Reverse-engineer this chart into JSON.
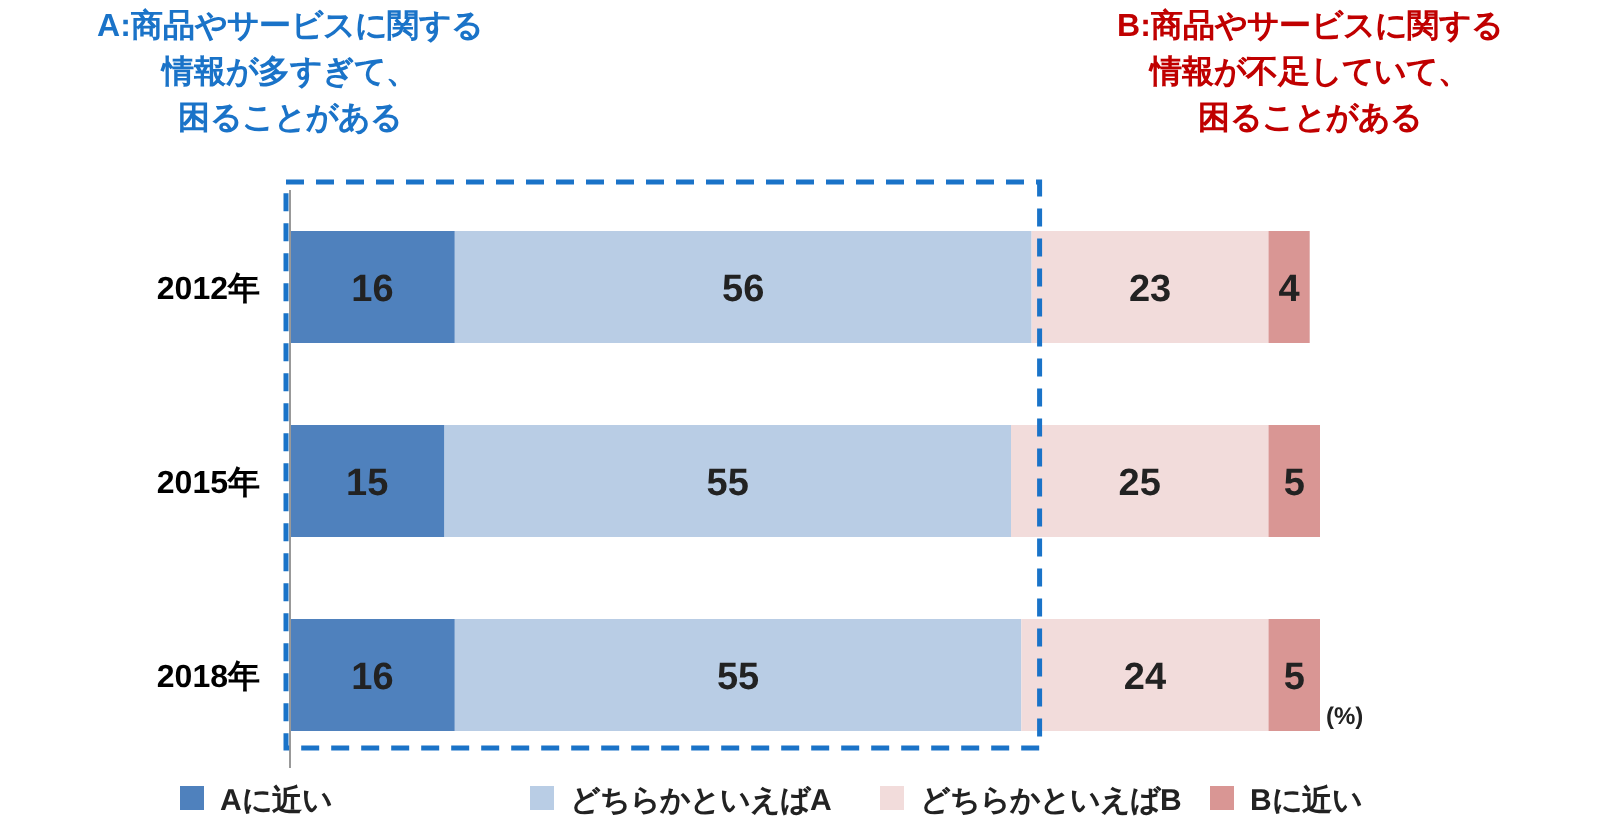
{
  "chart_data": {
    "type": "bar",
    "orientation": "horizontal",
    "stacked": true,
    "categories": [
      "2012年",
      "2015年",
      "2018年"
    ],
    "series": [
      {
        "name": "Aに近い",
        "color": "#4f81bd",
        "values": [
          16,
          15,
          16
        ]
      },
      {
        "name": "どちらかといえばA",
        "color": "#b9cde5",
        "values": [
          56,
          55,
          55
        ]
      },
      {
        "name": "どちらかといえばB",
        "color": "#f2dcdb",
        "values": [
          23,
          25,
          24
        ]
      },
      {
        "name": "Bに近い",
        "color": "#d99694",
        "values": [
          4,
          5,
          5
        ]
      }
    ],
    "data_labels": true,
    "legend": "bottom",
    "annotations": [
      "A:商品やサービスに関する",
      "情報が多すぎて、",
      "困ることがある",
      "B:商品やサービスに関する",
      "情報が不足していて、",
      "困ることがある",
      "(%)"
    ]
  }
}
